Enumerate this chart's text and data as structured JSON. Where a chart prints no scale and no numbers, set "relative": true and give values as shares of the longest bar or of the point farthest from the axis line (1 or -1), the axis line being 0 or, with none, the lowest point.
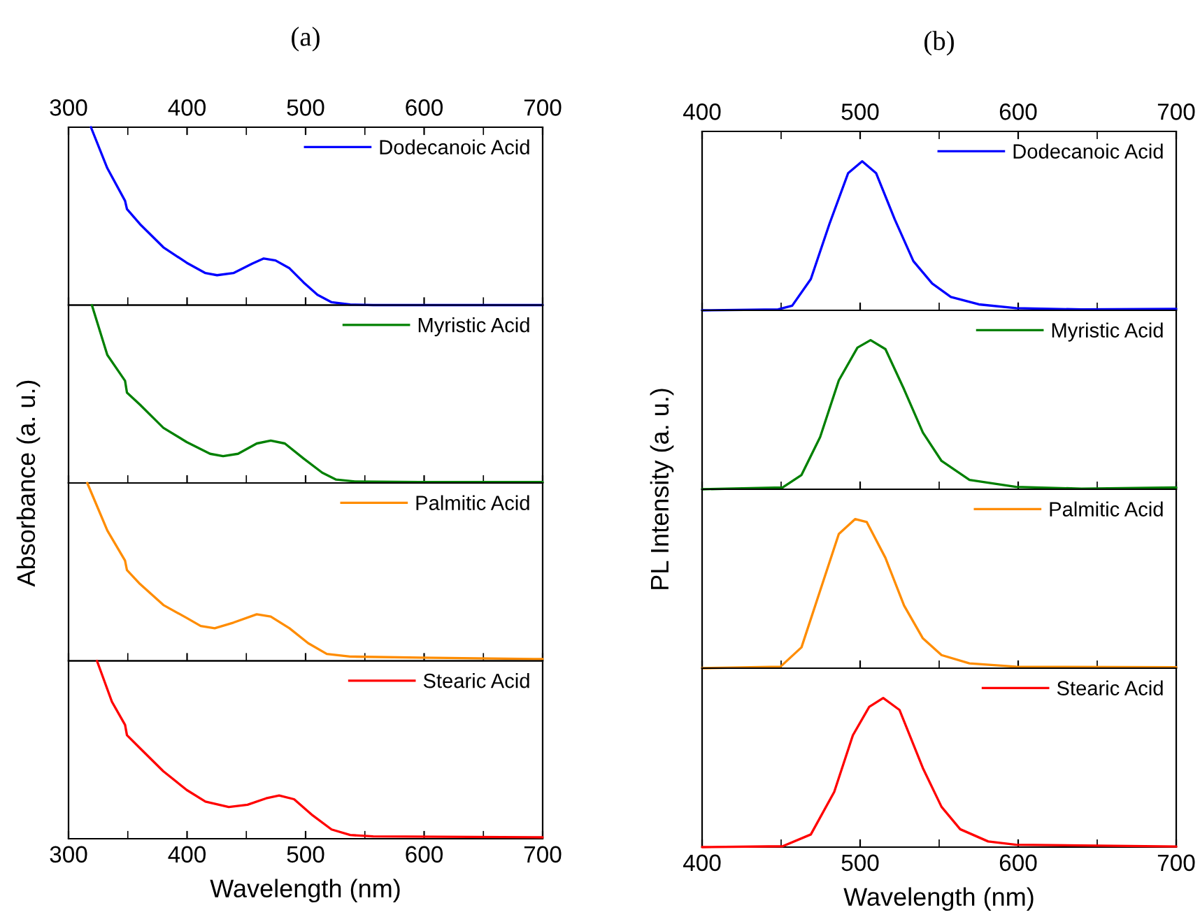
{
  "chart_data": [
    {
      "type": "line",
      "title": "(a)",
      "relative": true,
      "legend": "top right",
      "tick_labels": "x",
      "xlim": [
        300,
        700
      ],
      "xticks": [
        300,
        {
          "value": 350,
          "label": null
        },
        400,
        {
          "value": 450,
          "label": null
        },
        500,
        {
          "value": 550,
          "label": null
        },
        600,
        {
          "value": 650,
          "label": null
        },
        700
      ],
      "series": [
        {
          "name": "Dodecanoic Acid",
          "color": "#0000ff",
          "x": [
            318.9,
            332.7,
            347.7,
            349.3,
            360.3,
            380,
            399.7,
            415.5,
            425.3,
            439.1,
            454.9,
            464.7,
            474.6,
            486.4,
            498.2,
            510,
            522,
            537.6,
            557,
            700
          ],
          "values": [
            1.0,
            0.77,
            0.586,
            0.54,
            0.455,
            0.325,
            0.238,
            0.18,
            0.168,
            0.18,
            0.233,
            0.262,
            0.251,
            0.207,
            0.128,
            0.058,
            0.016,
            0.003,
            0,
            0
          ]
        }
      ]
    },
    {
      "type": "line",
      "relative": true,
      "legend": "top right",
      "tick_labels": false,
      "ylabel": "Absorbance (a. u.)",
      "xlim": [
        300,
        700
      ],
      "xticks": [
        300,
        {
          "value": 350,
          "label": null
        },
        400,
        {
          "value": 450,
          "label": null
        },
        500,
        {
          "value": 550,
          "label": null
        },
        600,
        {
          "value": 650,
          "label": null
        },
        700
      ],
      "series": [
        {
          "name": "Myristic Acid",
          "color": "#008000",
          "x": [
            319.7,
            332.7,
            347.7,
            349.3,
            360.3,
            380,
            399.7,
            419.4,
            430.4,
            443,
            458.8,
            470.6,
            482.5,
            498.2,
            514,
            525.8,
            541.6,
            596,
            700
          ],
          "values": [
            1.0,
            0.72,
            0.574,
            0.508,
            0.44,
            0.31,
            0.23,
            0.164,
            0.151,
            0.164,
            0.222,
            0.238,
            0.222,
            0.138,
            0.058,
            0.019,
            0.008,
            0.005,
            0.005
          ]
        }
      ]
    },
    {
      "type": "line",
      "relative": true,
      "legend": "top right",
      "tick_labels": false,
      "xlim": [
        300,
        700
      ],
      "xticks": [
        300,
        {
          "value": 350,
          "label": null
        },
        400,
        {
          "value": 450,
          "label": null
        },
        500,
        {
          "value": 550,
          "label": null
        },
        600,
        {
          "value": 650,
          "label": null
        },
        700
      ],
      "series": [
        {
          "name": "Palmitic Acid",
          "color": "#ff8c00",
          "x": [
            315.8,
            332.7,
            347.7,
            349.3,
            360.3,
            380,
            399.7,
            411.5,
            423.3,
            439.1,
            458.8,
            470.6,
            486.4,
            502.2,
            517.9,
            537.6,
            596,
            700
          ],
          "values": [
            1.0,
            0.733,
            0.563,
            0.51,
            0.432,
            0.314,
            0.241,
            0.196,
            0.183,
            0.215,
            0.262,
            0.249,
            0.183,
            0.099,
            0.039,
            0.024,
            0.018,
            0.01
          ]
        }
      ]
    },
    {
      "type": "line",
      "relative": true,
      "legend": "top right",
      "tick_labels": "x",
      "xlabel": "Wavelength (nm)",
      "xlim": [
        300,
        700
      ],
      "xticks": [
        300,
        {
          "value": 350,
          "label": null
        },
        400,
        {
          "value": 450,
          "label": null
        },
        500,
        {
          "value": 550,
          "label": null
        },
        600,
        {
          "value": 650,
          "label": null
        },
        700
      ],
      "series": [
        {
          "name": "Stearic Acid",
          "color": "#ff0000",
          "x": [
            324,
            336.6,
            347.7,
            349.3,
            360.3,
            380,
            399.7,
            415.5,
            435.2,
            451,
            466.7,
            477.7,
            490.3,
            506,
            521.9,
            537.6,
            557,
            700
          ],
          "values": [
            1.0,
            0.77,
            0.64,
            0.582,
            0.509,
            0.379,
            0.274,
            0.209,
            0.178,
            0.191,
            0.227,
            0.243,
            0.222,
            0.131,
            0.052,
            0.021,
            0.013,
            0.008
          ]
        }
      ]
    },
    {
      "type": "line",
      "title": "(b)",
      "relative": true,
      "legend": "top right",
      "tick_labels": "x",
      "xlim": [
        400,
        700
      ],
      "xticks": [
        400,
        {
          "value": 450,
          "label": null
        },
        500,
        {
          "value": 550,
          "label": null
        },
        600,
        {
          "value": 650,
          "label": null
        },
        700
      ],
      "series": [
        {
          "name": "Dodecanoic Acid",
          "color": "#0000ff",
          "x": [
            400,
            448.1,
            457,
            468.8,
            480.6,
            492.4,
            501.3,
            510.1,
            521.9,
            533.7,
            545.6,
            557.4,
            575.1,
            598.7,
            640,
            700
          ],
          "values": [
            0,
            0.006,
            0.031,
            0.21,
            0.58,
            0.92,
            1,
            0.92,
            0.61,
            0.33,
            0.18,
            0.09,
            0.04,
            0.015,
            0.006,
            0.01
          ]
        }
      ]
    },
    {
      "type": "line",
      "relative": true,
      "legend": "top right",
      "tick_labels": false,
      "ylabel": "PL Intensity (a. u.)",
      "xlim": [
        400,
        700
      ],
      "xticks": [
        400,
        {
          "value": 450,
          "label": null
        },
        500,
        {
          "value": 550,
          "label": null
        },
        600,
        {
          "value": 650,
          "label": null
        },
        700
      ],
      "series": [
        {
          "name": "Myristic Acid",
          "color": "#008000",
          "x": [
            400,
            451,
            462.9,
            474.7,
            486.5,
            498.3,
            506.6,
            516,
            527.8,
            539.7,
            551.5,
            569.2,
            598.7,
            640,
            700
          ],
          "values": [
            0,
            0.012,
            0.096,
            0.35,
            0.73,
            0.95,
            1,
            0.94,
            0.67,
            0.38,
            0.19,
            0.063,
            0.016,
            0.004,
            0.012
          ]
        }
      ]
    },
    {
      "type": "line",
      "relative": true,
      "legend": "top right",
      "tick_labels": false,
      "xlim": [
        400,
        700
      ],
      "xticks": [
        400,
        {
          "value": 450,
          "label": null
        },
        500,
        {
          "value": 550,
          "label": null
        },
        600,
        {
          "value": 650,
          "label": null
        },
        700
      ],
      "series": [
        {
          "name": "Palmitic Acid",
          "color": "#ff8c00",
          "x": [
            400,
            449.6,
            462.9,
            474.7,
            486.5,
            496.8,
            504.2,
            516,
            527.8,
            539.7,
            551.5,
            569.2,
            598.7,
            700
          ],
          "values": [
            0,
            0.01,
            0.14,
            0.52,
            0.9,
            1,
            0.98,
            0.74,
            0.42,
            0.2,
            0.088,
            0.032,
            0.01,
            0.006
          ]
        }
      ]
    },
    {
      "type": "line",
      "relative": true,
      "legend": "top right",
      "tick_labels": "x",
      "xlabel": "Wavelength (nm)",
      "xlim": [
        400,
        700
      ],
      "xticks": [
        400,
        {
          "value": 450,
          "label": null
        },
        500,
        {
          "value": 550,
          "label": null
        },
        600,
        {
          "value": 650,
          "label": null
        },
        700
      ],
      "series": [
        {
          "name": "Stearic Acid",
          "color": "#ff0000",
          "x": [
            400,
            451,
            468.8,
            483.6,
            495.4,
            505.7,
            514.6,
            524.9,
            539.7,
            551.5,
            563.3,
            581,
            598.7,
            700
          ],
          "values": [
            0,
            0.006,
            0.085,
            0.37,
            0.75,
            0.94,
            1,
            0.92,
            0.53,
            0.27,
            0.12,
            0.038,
            0.016,
            0.004
          ]
        }
      ]
    }
  ]
}
